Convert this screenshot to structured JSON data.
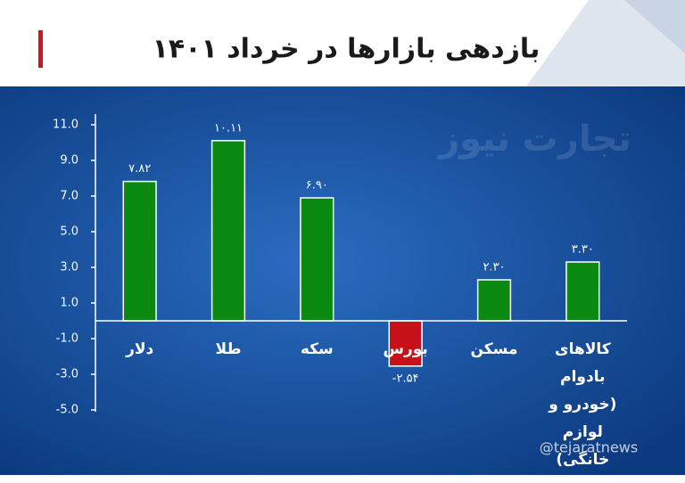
{
  "chart_data": {
    "type": "bar",
    "title": "بازدهی بازارها در خرداد ۱۴۰۱",
    "categories": [
      "دلار",
      "طلا",
      "سکه",
      "بورس",
      "مسکن",
      "کالاهای بادوام (خودرو و لوازم خانگی)"
    ],
    "values": [
      7.82,
      10.11,
      6.9,
      -2.54,
      2.3,
      3.3
    ],
    "value_labels": [
      "۷.۸۲",
      "۱۰.۱۱",
      "۶.۹۰",
      "-۲.۵۴",
      "۲.۳۰",
      "۳.۳۰"
    ],
    "color": "#0b8a12",
    "negative_color": "#c8101a",
    "ylim": [
      -5,
      11
    ],
    "yticks": [
      {
        "value": 11,
        "label": "11.0"
      },
      {
        "value": 9,
        "label": "9.0"
      },
      {
        "value": 7,
        "label": "7.0"
      },
      {
        "value": 5,
        "label": "5.0"
      },
      {
        "value": 3,
        "label": "3.0"
      },
      {
        "value": 1,
        "label": "1.0"
      },
      {
        "value": -1,
        "label": "-1.0"
      },
      {
        "value": -3,
        "label": "-3.0"
      },
      {
        "value": -5,
        "label": "-5.0"
      }
    ],
    "grid": false,
    "watermark": "تجارت نیوز",
    "credit": "@tejaratnews"
  }
}
